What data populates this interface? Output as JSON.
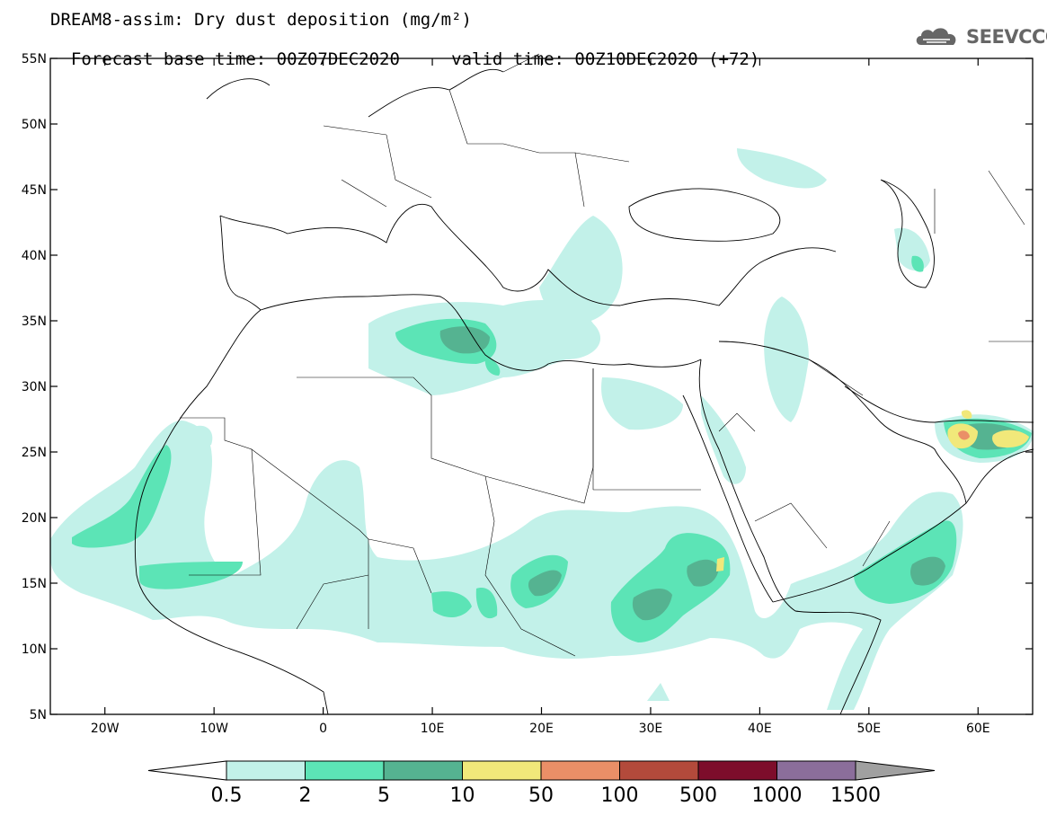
{
  "title": {
    "line1": "DREAM8-assim: Dry dust deposition (mg/m²)",
    "line2_left": "Forecast base time: 00Z07DEC2020",
    "line2_right": "valid time: 00Z10DEC2020 (+72)"
  },
  "logo": {
    "text": "SEEVCCC",
    "icon": "cloud-logo-icon",
    "color": "#666666"
  },
  "map": {
    "lon_range": [
      -25,
      65
    ],
    "lat_range": [
      5,
      55
    ],
    "lat_ticks": [
      {
        "value": 55,
        "label": "55N"
      },
      {
        "value": 50,
        "label": "50N"
      },
      {
        "value": 45,
        "label": "45N"
      },
      {
        "value": 40,
        "label": "40N"
      },
      {
        "value": 35,
        "label": "35N"
      },
      {
        "value": 30,
        "label": "30N"
      },
      {
        "value": 25,
        "label": "25N"
      },
      {
        "value": 20,
        "label": "20N"
      },
      {
        "value": 15,
        "label": "15N"
      },
      {
        "value": 10,
        "label": "10N"
      },
      {
        "value": 5,
        "label": "5N"
      }
    ],
    "lon_ticks": [
      {
        "value": -20,
        "label": "20W"
      },
      {
        "value": -10,
        "label": "10W"
      },
      {
        "value": 0,
        "label": "0"
      },
      {
        "value": 10,
        "label": "10E"
      },
      {
        "value": 20,
        "label": "20E"
      },
      {
        "value": 30,
        "label": "30E"
      },
      {
        "value": 40,
        "label": "40E"
      },
      {
        "value": 50,
        "label": "50E"
      },
      {
        "value": 60,
        "label": "60E"
      }
    ]
  },
  "colorbar": {
    "bins": [
      {
        "color": "#c2f1e9",
        "label": "0.5"
      },
      {
        "color": "#5ce4b6",
        "label": "2"
      },
      {
        "color": "#55b391",
        "label": "5"
      },
      {
        "color": "#f1e87a",
        "label": "10"
      },
      {
        "color": "#ea8f67",
        "label": "50"
      },
      {
        "color": "#b34a3b",
        "label": "100"
      },
      {
        "color": "#7d0d2b",
        "label": "500"
      },
      {
        "color": "#8b6e9b",
        "label": "1000"
      }
    ],
    "last_label": "1500",
    "under_color": "#ffffff",
    "over_color": "#a0a0a0"
  }
}
